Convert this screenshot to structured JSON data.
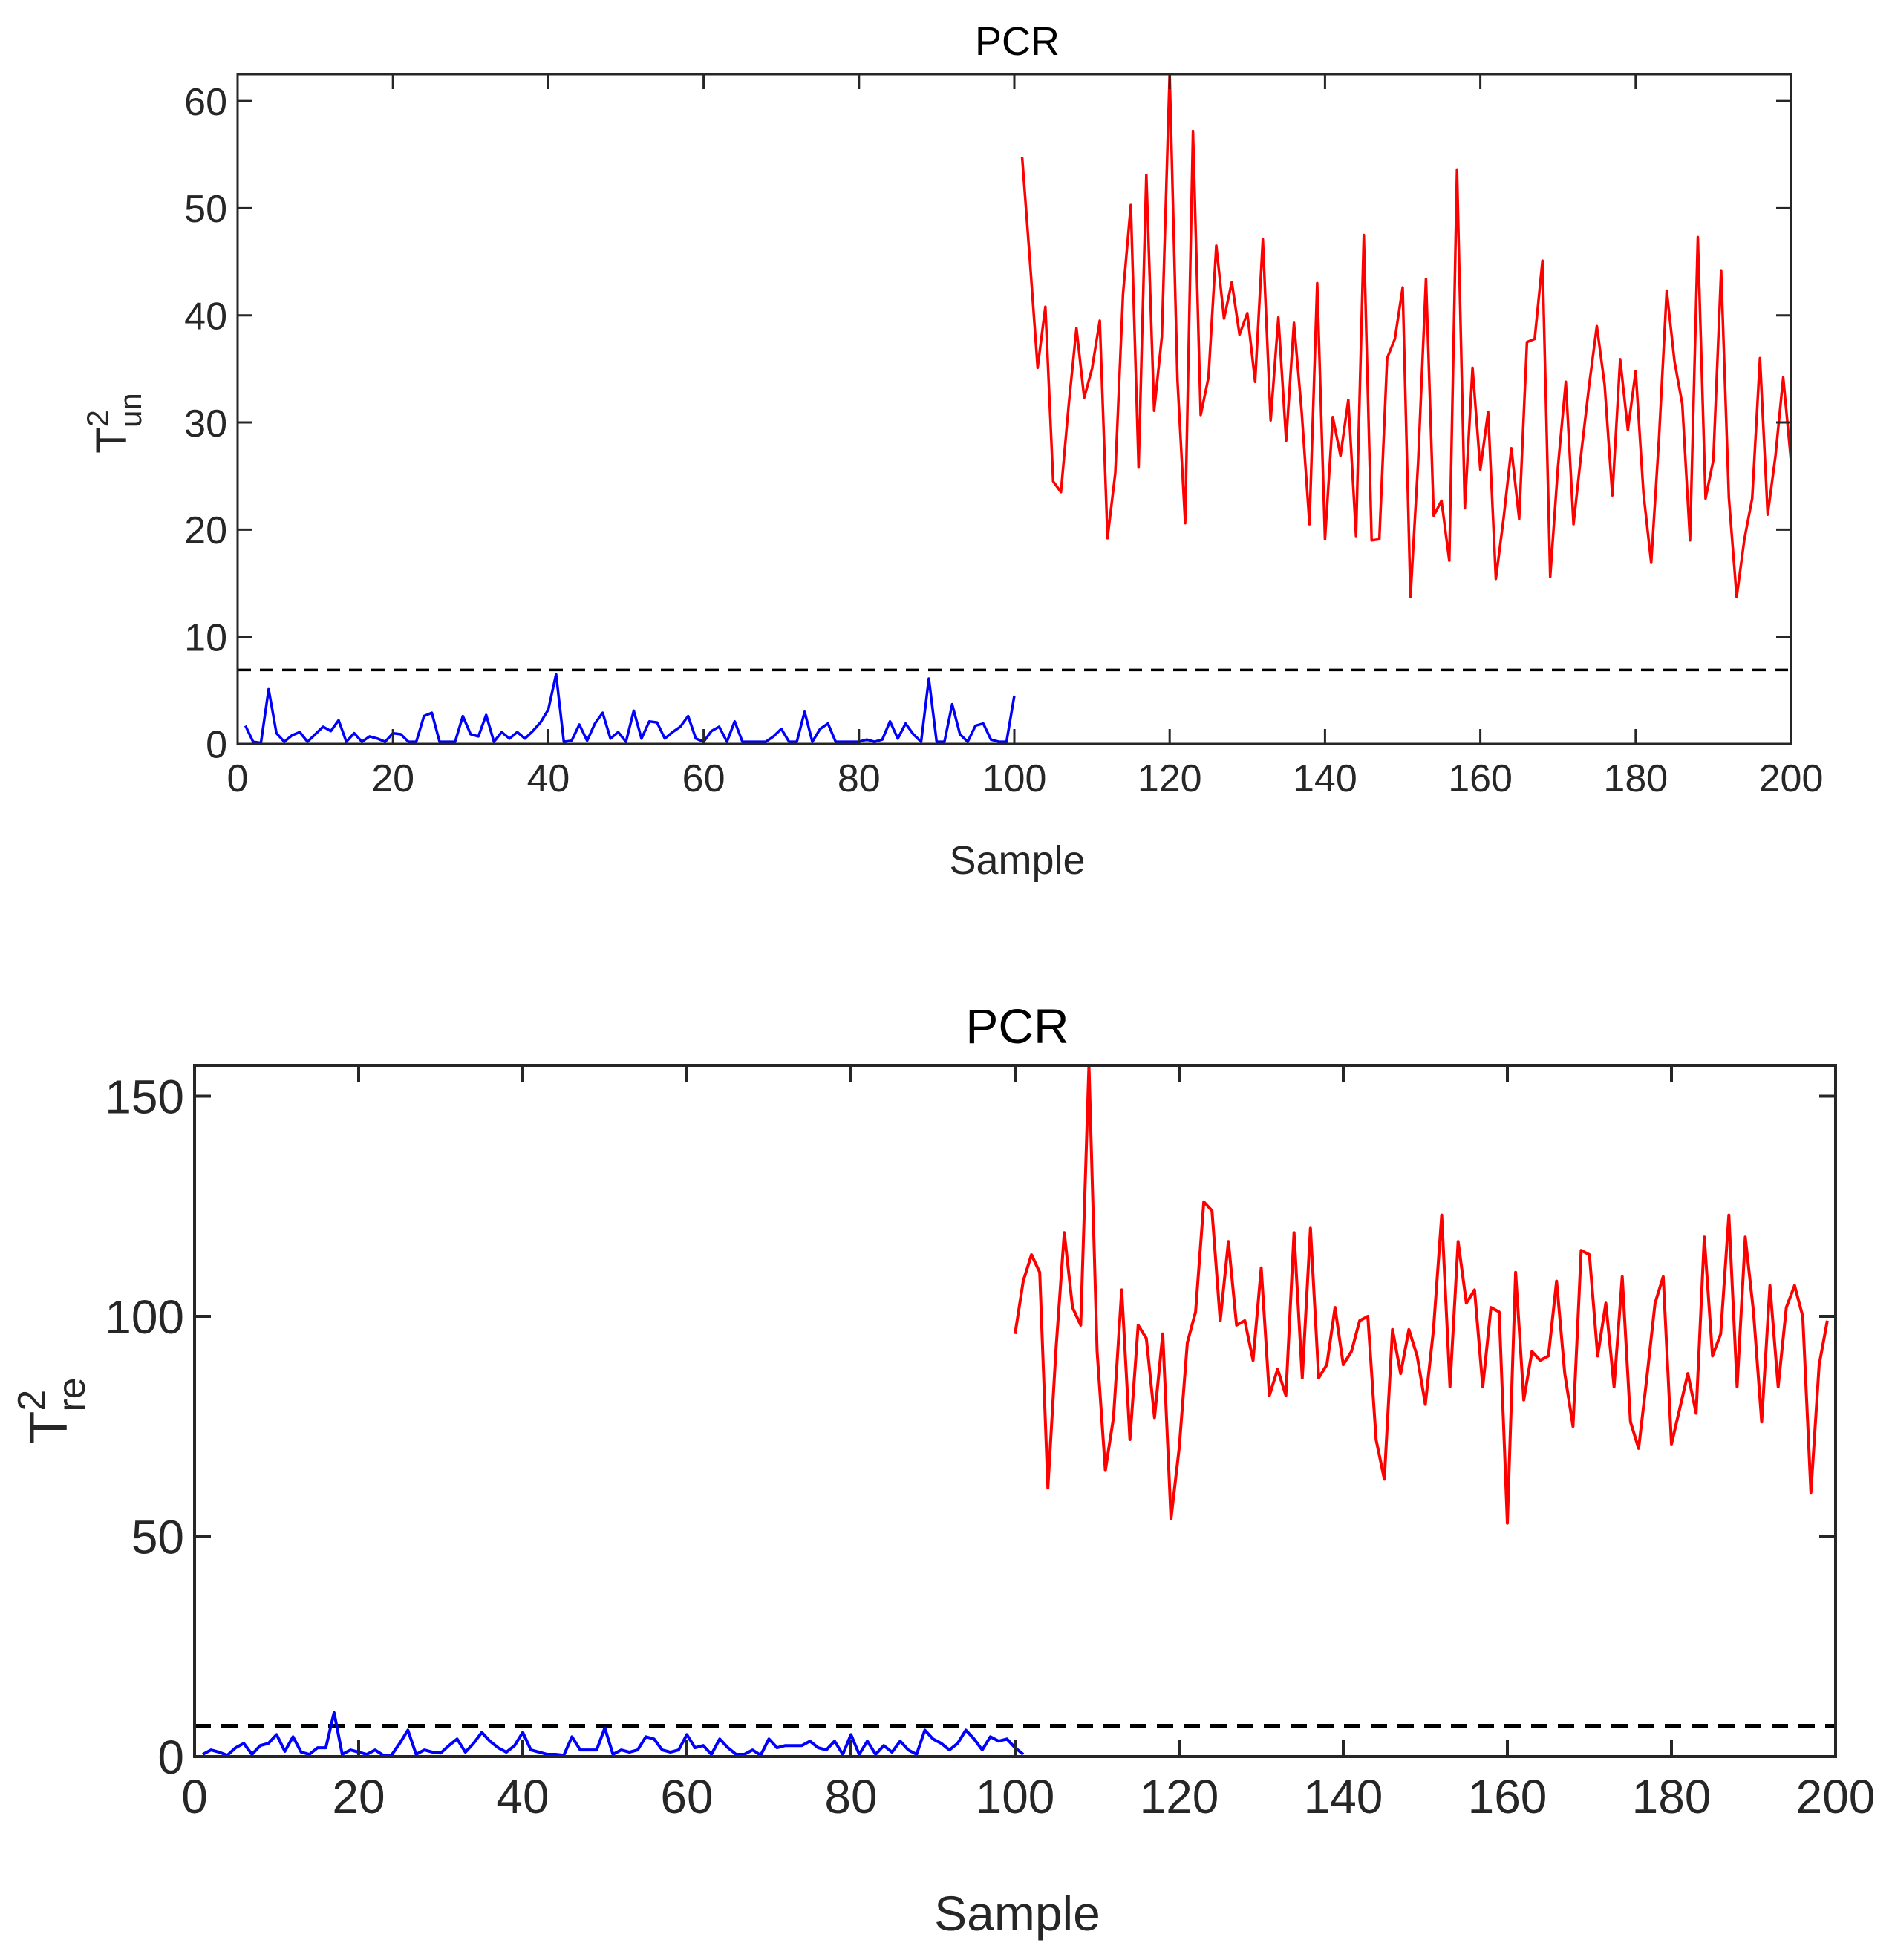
{
  "colors": {
    "normal": "#0000FF",
    "fault": "#FF0000",
    "limit": "#000000",
    "axis": "#262626"
  },
  "chart_data": [
    {
      "type": "line",
      "title": "PCR",
      "xlabel": "Sample",
      "ylabel_main": "T",
      "ylabel_sup": "2",
      "ylabel_sub": "un",
      "xlim": [
        0,
        200
      ],
      "ylim": [
        0,
        62.5
      ],
      "xticks": [
        0,
        20,
        40,
        60,
        80,
        100,
        120,
        140,
        160,
        180,
        200
      ],
      "yticks": [
        0,
        10,
        20,
        30,
        40,
        50,
        60
      ],
      "control_limit": 6.9,
      "series": [
        {
          "name": "normal",
          "x_start": 1,
          "values": [
            1.7,
            0.2,
            0.1,
            5.1,
            1.0,
            0.2,
            0.8,
            1.1,
            0.2,
            0.9,
            1.6,
            1.2,
            2.2,
            0.2,
            1.0,
            0.2,
            0.7,
            0.5,
            0.2,
            1.0,
            0.9,
            0.2,
            0.2,
            2.6,
            2.9,
            0.2,
            0.2,
            0.2,
            2.6,
            0.9,
            0.7,
            2.7,
            0.2,
            1.1,
            0.5,
            1.1,
            0.5,
            1.2,
            2.0,
            3.2,
            6.5,
            0.2,
            0.3,
            1.8,
            0.3,
            1.9,
            2.9,
            0.5,
            1.1,
            0.2,
            3.1,
            0.5,
            2.1,
            2.0,
            0.5,
            1.1,
            1.6,
            2.6,
            0.5,
            0.2,
            1.2,
            1.6,
            0.2,
            2.1,
            0.2,
            0.2,
            0.2,
            0.2,
            0.7,
            1.4,
            0.2,
            0.2,
            3.0,
            0.2,
            1.4,
            1.9,
            0.2,
            0.2,
            0.2,
            0.2,
            0.4,
            0.2,
            0.4,
            2.1,
            0.5,
            1.9,
            0.9,
            0.2,
            6.1,
            0.2,
            0.2,
            3.7,
            0.9,
            0.2,
            1.7,
            1.9,
            0.4,
            0.2,
            0.2,
            4.5
          ]
        },
        {
          "name": "fault",
          "x_start": 101,
          "values": [
            54.8,
            45.2,
            35.1,
            40.8,
            24.5,
            23.5,
            31.6,
            38.8,
            32.3,
            35.0,
            39.5,
            19.2,
            25.3,
            42.0,
            50.3,
            25.8,
            53.1,
            31.1,
            38.0,
            62.5,
            34.0,
            20.6,
            57.2,
            30.7,
            34.2,
            46.5,
            39.7,
            43.1,
            38.2,
            40.2,
            33.8,
            47.1,
            30.2,
            39.8,
            28.3,
            39.3,
            31.0,
            20.5,
            43.0,
            19.1,
            30.5,
            26.9,
            32.1,
            19.4,
            47.5,
            19.0,
            19.1,
            36.0,
            37.8,
            42.6,
            13.7,
            26.4,
            43.4,
            21.3,
            22.7,
            17.1,
            53.6,
            22.0,
            35.1,
            25.6,
            31.0,
            15.4,
            21.1,
            27.6,
            21.0,
            37.5,
            37.8,
            45.1,
            15.6,
            25.9,
            33.8,
            20.5,
            27.2,
            33.4,
            39.0,
            33.5,
            23.2,
            35.9,
            29.3,
            34.8,
            23.4,
            16.9,
            28.5,
            42.3,
            35.7,
            31.7,
            19.0,
            47.3,
            22.9,
            26.5,
            44.2,
            23.0,
            13.7,
            19.1,
            22.9,
            36.0,
            21.4,
            26.9,
            34.2,
            26.4
          ]
        }
      ]
    },
    {
      "type": "line",
      "title": "PCR",
      "xlabel": "Sample",
      "ylabel_main": "T",
      "ylabel_sup": "2",
      "ylabel_sub": "re",
      "xlim": [
        0,
        200
      ],
      "ylim": [
        0,
        157
      ],
      "xticks": [
        0,
        20,
        40,
        60,
        80,
        100,
        120,
        140,
        160,
        180,
        200
      ],
      "yticks": [
        0,
        50,
        100,
        150
      ],
      "control_limit": 7.0,
      "series": [
        {
          "name": "normal",
          "x_start": 1,
          "values": [
            0.5,
            1.5,
            1.0,
            0.3,
            2.0,
            3.0,
            0.5,
            2.5,
            3.0,
            5.0,
            1.2,
            4.5,
            1.0,
            0.5,
            2.0,
            2.0,
            10.0,
            0.5,
            1.5,
            1.0,
            0.5,
            1.5,
            0.3,
            0.3,
            3.0,
            6.0,
            0.5,
            1.5,
            1.0,
            0.8,
            2.5,
            4.0,
            1.0,
            3.0,
            5.5,
            3.5,
            2.0,
            1.0,
            2.5,
            5.5,
            1.5,
            1.0,
            0.5,
            0.5,
            0.3,
            4.5,
            1.5,
            1.5,
            1.5,
            6.5,
            0.5,
            1.5,
            1.0,
            1.5,
            4.5,
            4.0,
            1.5,
            1.0,
            1.5,
            5.0,
            2.0,
            2.5,
            0.5,
            4.0,
            2.0,
            0.5,
            0.5,
            1.5,
            0.3,
            4.0,
            2.0,
            2.5,
            2.5,
            2.5,
            3.5,
            2.0,
            1.5,
            3.5,
            0.5,
            5.0,
            0.5,
            3.5,
            0.5,
            2.5,
            1.0,
            3.5,
            1.5,
            0.5,
            6.0,
            4.0,
            3.0,
            1.5,
            3.0,
            6.0,
            4.0,
            1.5,
            4.5,
            3.5,
            4.0,
            2.0,
            0.5
          ]
        },
        {
          "name": "fault",
          "x_start": 100,
          "values": [
            96.0,
            108.0,
            114.0,
            110.0,
            61.0,
            93.0,
            119.0,
            102.0,
            98.0,
            157.0,
            92.0,
            65.0,
            77.0,
            106.0,
            72.0,
            98.0,
            95.0,
            77.0,
            96.0,
            54.0,
            70.0,
            94.0,
            101.0,
            126.0,
            124.0,
            99.0,
            117.0,
            98.0,
            99.0,
            90.0,
            111.0,
            82.0,
            88.0,
            82.0,
            119.0,
            86.0,
            120.0,
            86.0,
            89.0,
            102.0,
            89.0,
            92.0,
            99.0,
            100.0,
            72.0,
            63.0,
            97.0,
            87.0,
            97.0,
            91.0,
            80.0,
            97.0,
            123.0,
            84.0,
            117.0,
            103.0,
            106.0,
            84.0,
            102.0,
            101.0,
            53.0,
            110.0,
            81.0,
            92.0,
            90.0,
            91.0,
            108.0,
            87.0,
            75.0,
            115.0,
            114.0,
            91.0,
            103.0,
            84.0,
            109.0,
            76.0,
            70.0,
            86.0,
            103.0,
            109.0,
            71.0,
            79.0,
            87.0,
            78.0,
            118.0,
            91.0,
            96.0,
            123.0,
            84.0,
            118.0,
            101.0,
            76.0,
            107.0,
            84.0,
            102.0,
            107.0,
            100.0,
            60.0,
            89.0,
            99.0
          ]
        }
      ]
    }
  ]
}
